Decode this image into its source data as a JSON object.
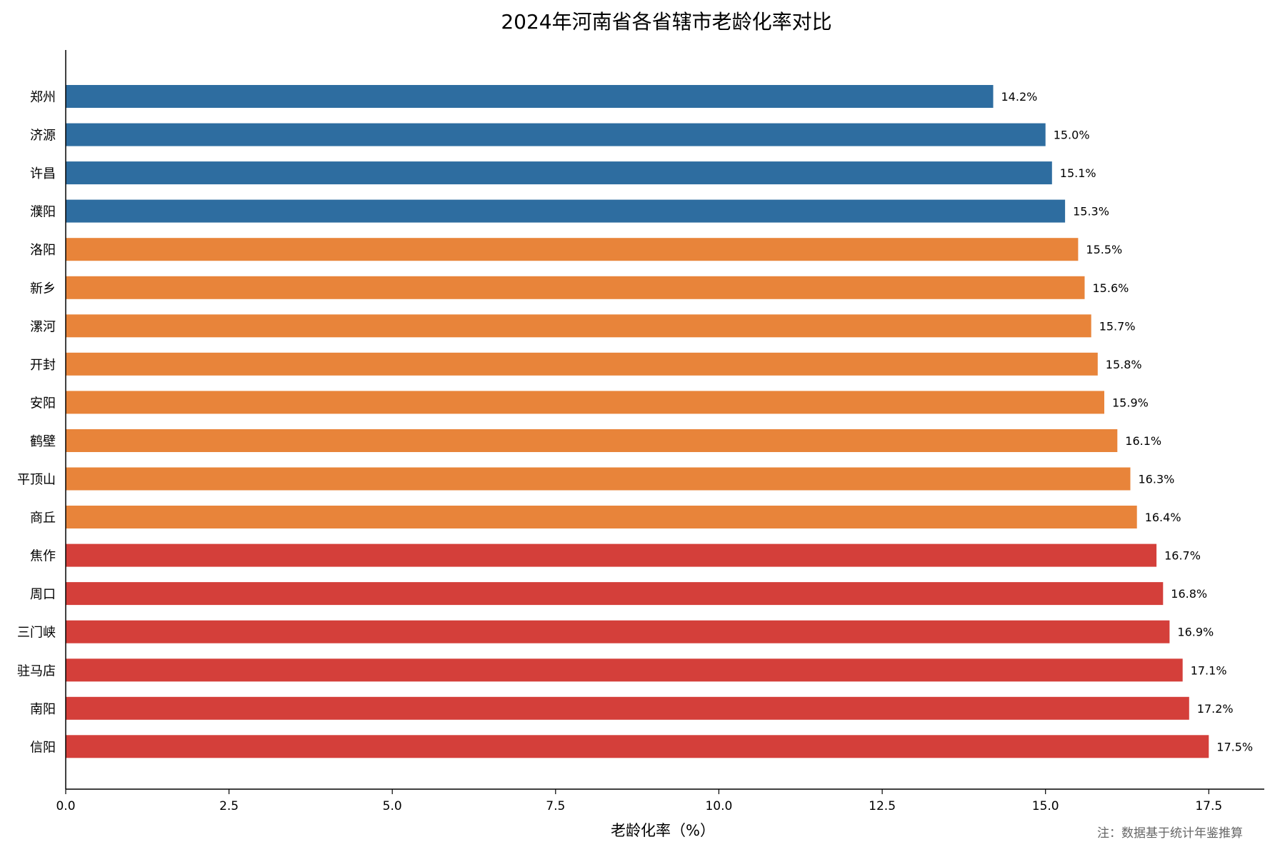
{
  "chart_data": {
    "type": "bar",
    "orientation": "horizontal",
    "title": "2024年河南省各省辖市老龄化率对比",
    "xlabel": "老龄化率（%）",
    "ylabel": "",
    "xlim": [
      0,
      18.35
    ],
    "xticks": [
      0.0,
      2.5,
      5.0,
      7.5,
      10.0,
      12.5,
      15.0,
      17.5
    ],
    "xtick_labels": [
      "0.0",
      "2.5",
      "5.0",
      "7.5",
      "10.0",
      "12.5",
      "15.0",
      "17.5"
    ],
    "grid": false,
    "categories": [
      "郑州",
      "济源",
      "许昌",
      "濮阳",
      "洛阳",
      "新乡",
      "漯河",
      "开封",
      "安阳",
      "鹤壁",
      "平顶山",
      "商丘",
      "焦作",
      "周口",
      "三门峡",
      "驻马店",
      "南阳",
      "信阳"
    ],
    "values": [
      14.2,
      15.0,
      15.1,
      15.3,
      15.5,
      15.6,
      15.7,
      15.8,
      15.9,
      16.1,
      16.3,
      16.4,
      16.7,
      16.8,
      16.9,
      17.1,
      17.2,
      17.5
    ],
    "data_labels": [
      "14.2%",
      "15.0%",
      "15.1%",
      "15.3%",
      "15.5%",
      "15.6%",
      "15.7%",
      "15.8%",
      "15.9%",
      "16.1%",
      "16.3%",
      "16.4%",
      "16.7%",
      "16.8%",
      "16.9%",
      "17.1%",
      "17.2%",
      "17.5%"
    ],
    "bar_color_groups": [
      "blue",
      "blue",
      "blue",
      "blue",
      "orange",
      "orange",
      "orange",
      "orange",
      "orange",
      "orange",
      "orange",
      "orange",
      "red",
      "red",
      "red",
      "red",
      "red",
      "red"
    ],
    "colors": {
      "blue": "#2e6da0",
      "orange": "#e8843a",
      "red": "#d43f3a"
    },
    "note": "注：数据基于统计年鉴推算"
  }
}
